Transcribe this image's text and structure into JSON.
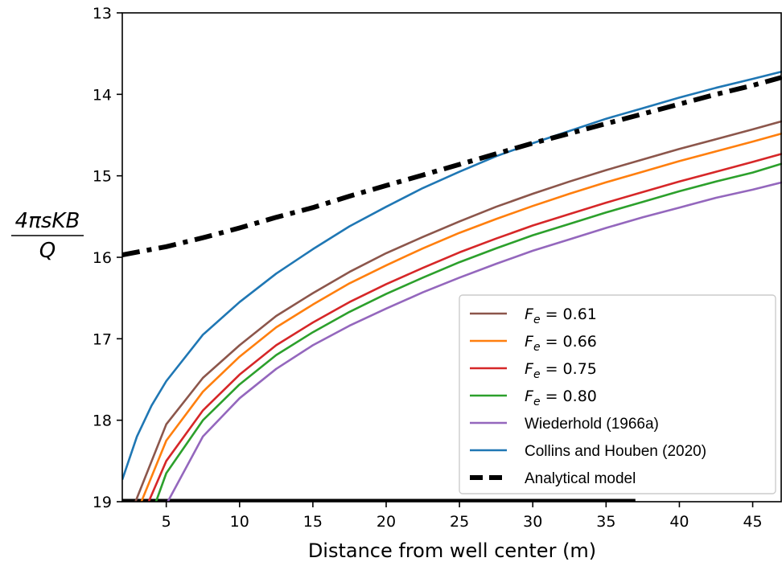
{
  "chart_data": {
    "type": "line",
    "xlabel": "Distance from well center (m)",
    "ylabel": {
      "numerator": "4πsKB",
      "denominator": "Q"
    },
    "xlim": [
      2,
      47
    ],
    "ylim": [
      19,
      13
    ],
    "y_inverted": true,
    "xticks": [
      5,
      10,
      15,
      20,
      25,
      30,
      35,
      40,
      45
    ],
    "yticks": [
      13,
      14,
      15,
      16,
      17,
      18,
      19
    ],
    "grid": false,
    "legend_position": "lower-right",
    "series": [
      {
        "name": "F_e = 0.61",
        "legend_symbol": "F",
        "legend_subscript": "e",
        "legend_value": "= 0.61",
        "color": "#8c564b",
        "style": "solid",
        "x": [
          2.9,
          5,
          7.5,
          10,
          12.5,
          15,
          17.5,
          20,
          22.5,
          25,
          27.5,
          30,
          32.5,
          35,
          37.5,
          40,
          42.5,
          45,
          47
        ],
        "y": [
          19.0,
          18.05,
          17.48,
          17.08,
          16.72,
          16.44,
          16.18,
          15.95,
          15.75,
          15.56,
          15.38,
          15.22,
          15.07,
          14.93,
          14.8,
          14.67,
          14.55,
          14.43,
          14.33
        ]
      },
      {
        "name": "F_e = 0.66",
        "legend_symbol": "F",
        "legend_subscript": "e",
        "legend_value": "= 0.66",
        "color": "#ff7f0e",
        "style": "solid",
        "x": [
          3.3,
          5,
          7.5,
          10,
          12.5,
          15,
          17.5,
          20,
          22.5,
          25,
          27.5,
          30,
          32.5,
          35,
          37.5,
          40,
          42.5,
          45,
          47
        ],
        "y": [
          19.0,
          18.25,
          17.65,
          17.22,
          16.86,
          16.58,
          16.32,
          16.1,
          15.89,
          15.7,
          15.53,
          15.37,
          15.22,
          15.08,
          14.95,
          14.82,
          14.7,
          14.58,
          14.48
        ]
      },
      {
        "name": "F_e = 0.75",
        "legend_symbol": "F",
        "legend_subscript": "e",
        "legend_value": "= 0.75",
        "color": "#d62728",
        "style": "solid",
        "x": [
          3.8,
          5,
          7.5,
          10,
          12.5,
          15,
          17.5,
          20,
          22.5,
          25,
          27.5,
          30,
          32.5,
          35,
          37.5,
          40,
          42.5,
          45,
          47
        ],
        "y": [
          19.0,
          18.5,
          17.88,
          17.44,
          17.08,
          16.8,
          16.55,
          16.33,
          16.13,
          15.94,
          15.77,
          15.61,
          15.47,
          15.33,
          15.2,
          15.07,
          14.95,
          14.83,
          14.73
        ]
      },
      {
        "name": "F_e = 0.80",
        "legend_symbol": "F",
        "legend_subscript": "e",
        "legend_value": "= 0.80",
        "color": "#2ca02c",
        "style": "solid",
        "x": [
          4.3,
          5,
          7.5,
          10,
          12.5,
          15,
          17.5,
          20,
          22.5,
          25,
          27.5,
          30,
          32.5,
          35,
          37.5,
          40,
          42.5,
          45,
          47
        ],
        "y": [
          19.0,
          18.65,
          18.0,
          17.56,
          17.2,
          16.92,
          16.67,
          16.45,
          16.25,
          16.06,
          15.89,
          15.73,
          15.59,
          15.45,
          15.32,
          15.19,
          15.07,
          14.96,
          14.85
        ]
      },
      {
        "name": "Wiederhold (1966a)",
        "color": "#9467bd",
        "style": "solid",
        "x": [
          5.1,
          7.5,
          10,
          12.5,
          15,
          17.5,
          20,
          22.5,
          25,
          27.5,
          30,
          32.5,
          35,
          37.5,
          40,
          42.5,
          45,
          47
        ],
        "y": [
          19.0,
          18.2,
          17.73,
          17.37,
          17.08,
          16.84,
          16.63,
          16.43,
          16.25,
          16.08,
          15.92,
          15.78,
          15.64,
          15.51,
          15.39,
          15.27,
          15.17,
          15.08
        ]
      },
      {
        "name": "Collins and Houben (2020)",
        "color": "#1f77b4",
        "style": "solid",
        "x": [
          2,
          3,
          4,
          5,
          7.5,
          10,
          12.5,
          15,
          17.5,
          20,
          22.5,
          25,
          27.5,
          30,
          32.5,
          35,
          37.5,
          40,
          42.5,
          45,
          47
        ],
        "y": [
          18.73,
          18.2,
          17.82,
          17.52,
          16.95,
          16.55,
          16.2,
          15.9,
          15.62,
          15.38,
          15.15,
          14.95,
          14.76,
          14.6,
          14.45,
          14.3,
          14.17,
          14.04,
          13.92,
          13.81,
          13.72
        ]
      },
      {
        "name": "Analytical model",
        "color": "#000000",
        "style": "dashdot",
        "x": [
          2,
          5,
          7.5,
          10,
          12.5,
          15,
          17.5,
          20,
          22.5,
          25,
          27.5,
          30,
          32.5,
          35,
          37.5,
          40,
          42.5,
          45,
          47
        ],
        "y": [
          15.97,
          15.87,
          15.76,
          15.64,
          15.51,
          15.39,
          15.25,
          15.12,
          14.99,
          14.86,
          14.73,
          14.6,
          14.48,
          14.36,
          14.24,
          14.12,
          14.0,
          13.89,
          13.79
        ]
      }
    ],
    "baseline": {
      "color": "#000000",
      "x": [
        2,
        37
      ],
      "y": 19
    }
  }
}
